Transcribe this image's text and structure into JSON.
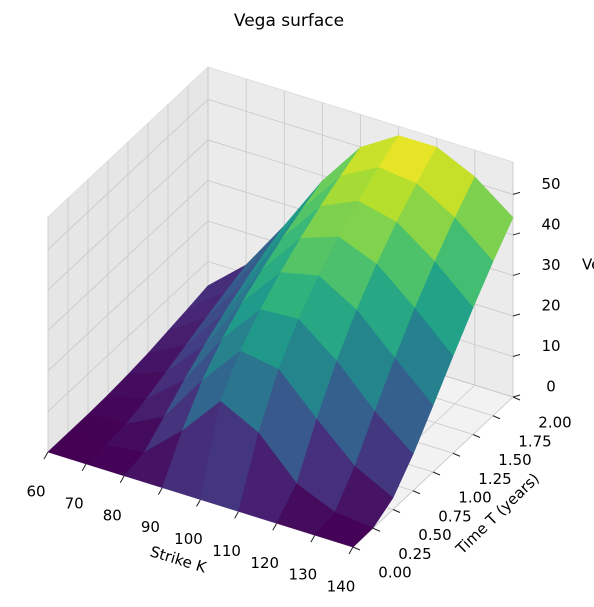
{
  "chart_data": {
    "type": "surface3d",
    "title": "Vega surface",
    "xlabel": "Strike K",
    "ylabel": "Time T (years)",
    "zlabel": "Vega",
    "colormap": "viridis",
    "x": [
      60,
      70,
      80,
      90,
      100,
      110,
      120,
      130,
      140
    ],
    "y": [
      0,
      0.25,
      0.5,
      0.75,
      1,
      1.25,
      1.5,
      1.75,
      2
    ],
    "z": [
      [
        0,
        0,
        0,
        0,
        0,
        0,
        0,
        0,
        0
      ],
      [
        0,
        0.02,
        1.1,
        9.4,
        19.6,
        14.7,
        5.1,
        1.0,
        0.1
      ],
      [
        0.02,
        0.6,
        5.3,
        17.2,
        27.4,
        25.8,
        16.4,
        7.7,
        2.9
      ],
      [
        0.2,
        2.1,
        9.7,
        22.8,
        33.0,
        33.5,
        26.1,
        16.6,
        9.0
      ],
      [
        0.6,
        4.1,
        13.6,
        27.2,
        37.5,
        39.6,
        34.1,
        25.1,
        16.4
      ],
      [
        1.2,
        6.2,
        17.0,
        30.7,
        41.3,
        44.6,
        40.8,
        32.8,
        24.0
      ],
      [
        2.1,
        8.3,
        19.9,
        33.8,
        44.6,
        48.8,
        46.5,
        39.7,
        31.3
      ],
      [
        3.0,
        10.2,
        22.5,
        36.4,
        47.4,
        52.5,
        51.4,
        45.9,
        38.1
      ],
      [
        4.0,
        12.1,
        24.7,
        38.7,
        49.9,
        55.7,
        55.8,
        51.4,
        44.3
      ]
    ],
    "xlim": [
      60,
      140
    ],
    "ylim": [
      0,
      2
    ],
    "zlim": [
      0,
      58
    ],
    "xticks": [
      60,
      70,
      80,
      90,
      100,
      110,
      120,
      130,
      140
    ],
    "yticks": [
      {
        "value": 0,
        "label": "0.00"
      },
      {
        "value": 0.25,
        "label": "0.25"
      },
      {
        "value": 0.5,
        "label": "0.50"
      },
      {
        "value": 0.75,
        "label": "0.75"
      },
      {
        "value": 1,
        "label": "1.00"
      },
      {
        "value": 1.25,
        "label": "1.25"
      },
      {
        "value": 1.5,
        "label": "1.50"
      },
      {
        "value": 1.75,
        "label": "1.75"
      },
      {
        "value": 2,
        "label": "2.00"
      }
    ],
    "zticks": [
      0,
      10,
      20,
      30,
      40,
      50
    ],
    "grid": true
  }
}
